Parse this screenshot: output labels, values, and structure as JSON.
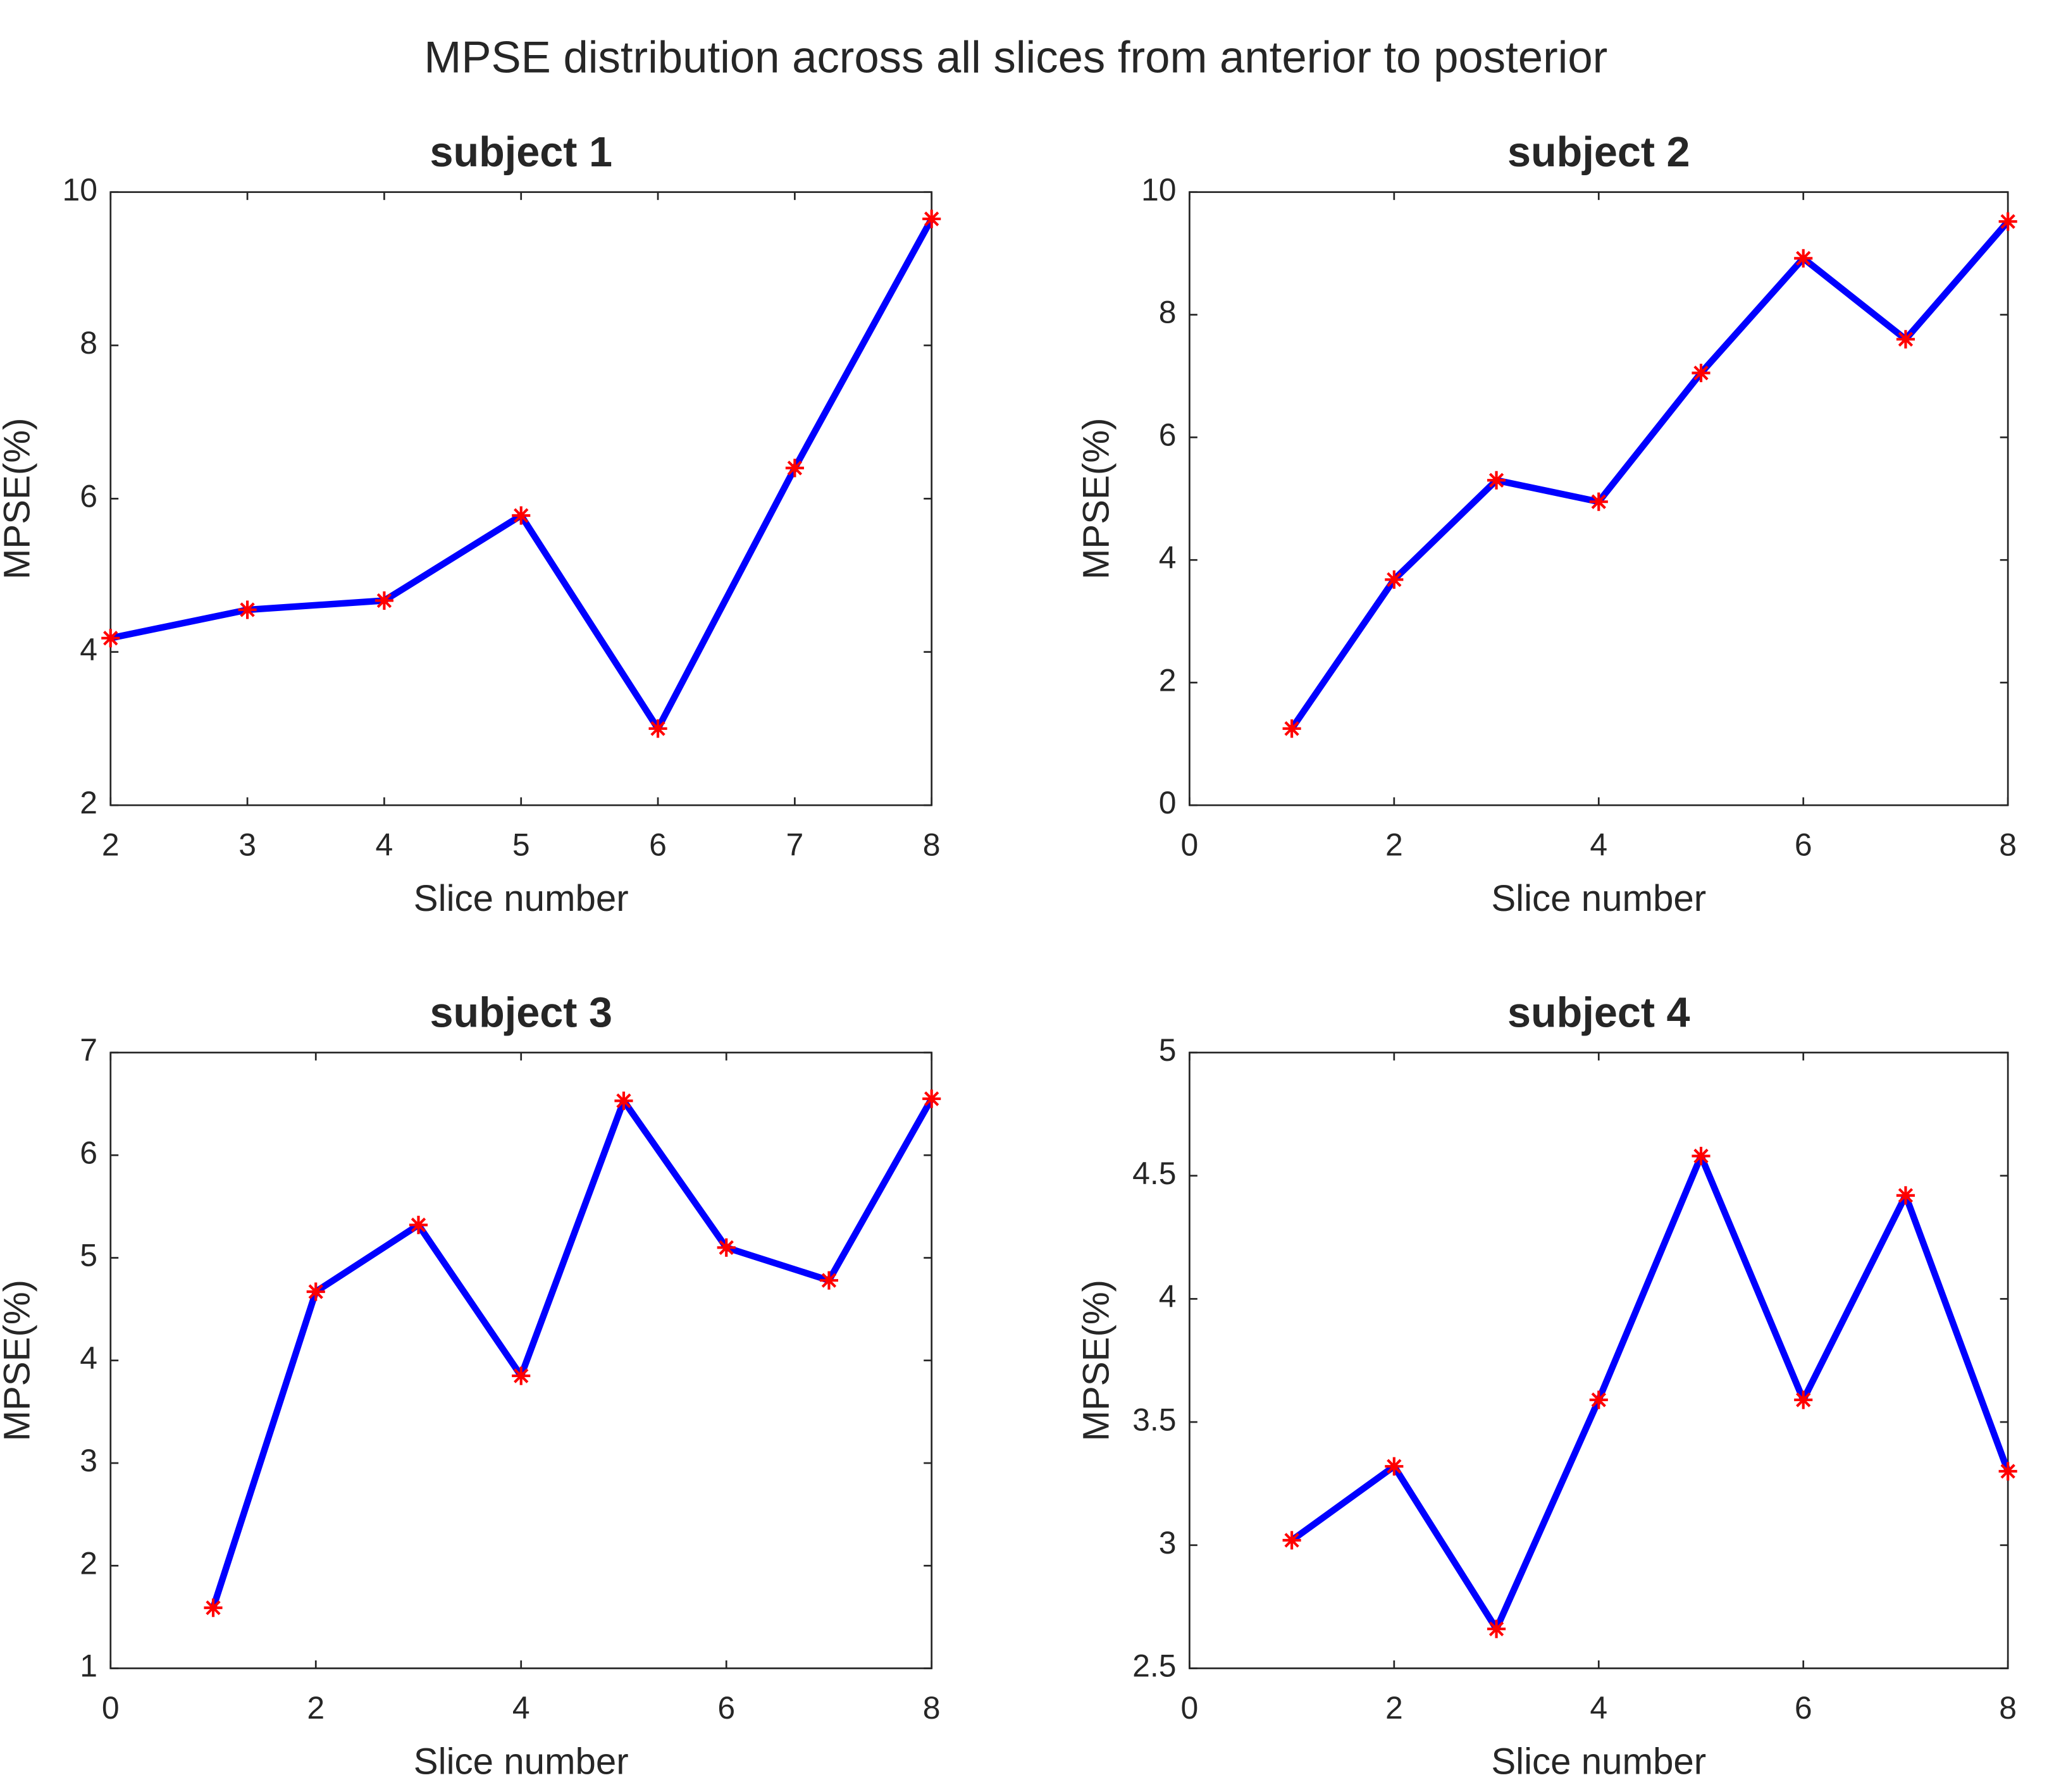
{
  "title": "MPSE distribution across all slices from anterior to posterior",
  "chart_data": [
    {
      "type": "line",
      "title": "subject 1",
      "xlabel": "Slice number",
      "ylabel": "MPSE(%)",
      "x": [
        2,
        3,
        4,
        5,
        6,
        7,
        8
      ],
      "values": [
        4.18,
        4.55,
        4.67,
        5.78,
        3.0,
        6.4,
        9.65
      ],
      "color": "#0000ff",
      "marker_color": "#ff0000",
      "xlim": [
        2,
        8
      ],
      "xticks": [
        2,
        3,
        4,
        5,
        6,
        7,
        8
      ],
      "ylim": [
        2,
        10
      ],
      "yticks": [
        2,
        4,
        6,
        8,
        10
      ]
    },
    {
      "type": "line",
      "title": "subject 2",
      "xlabel": "Slice number",
      "ylabel": "MPSE(%)",
      "x": [
        1,
        2,
        3,
        4,
        5,
        6,
        7,
        8
      ],
      "values": [
        1.25,
        3.68,
        5.3,
        4.95,
        7.05,
        8.92,
        7.6,
        9.52
      ],
      "color": "#0000ff",
      "marker_color": "#ff0000",
      "xlim": [
        0,
        8
      ],
      "xticks": [
        0,
        2,
        4,
        6,
        8
      ],
      "ylim": [
        0,
        10
      ],
      "yticks": [
        0,
        2,
        4,
        6,
        8,
        10
      ]
    },
    {
      "type": "line",
      "title": "subject 3",
      "xlabel": "Slice number",
      "ylabel": "MPSE(%)",
      "x": [
        1,
        2,
        3,
        4,
        5,
        6,
        7,
        8
      ],
      "values": [
        1.59,
        4.67,
        5.32,
        3.85,
        6.53,
        5.1,
        4.78,
        6.55
      ],
      "color": "#0000ff",
      "marker_color": "#ff0000",
      "xlim": [
        0,
        8
      ],
      "xticks": [
        0,
        2,
        4,
        6,
        8
      ],
      "ylim": [
        1,
        7
      ],
      "yticks": [
        1,
        2,
        3,
        4,
        5,
        6,
        7
      ]
    },
    {
      "type": "line",
      "title": "subject 4",
      "xlabel": "Slice number",
      "ylabel": "MPSE(%)",
      "x": [
        1,
        2,
        3,
        4,
        5,
        6,
        7,
        8
      ],
      "values": [
        3.02,
        3.32,
        2.66,
        3.59,
        4.58,
        3.59,
        4.42,
        3.3
      ],
      "color": "#0000ff",
      "marker_color": "#ff0000",
      "xlim": [
        0,
        8
      ],
      "xticks": [
        0,
        2,
        4,
        6,
        8
      ],
      "ylim": [
        2.5,
        5
      ],
      "yticks": [
        2.5,
        3,
        3.5,
        4,
        4.5,
        5
      ]
    }
  ]
}
